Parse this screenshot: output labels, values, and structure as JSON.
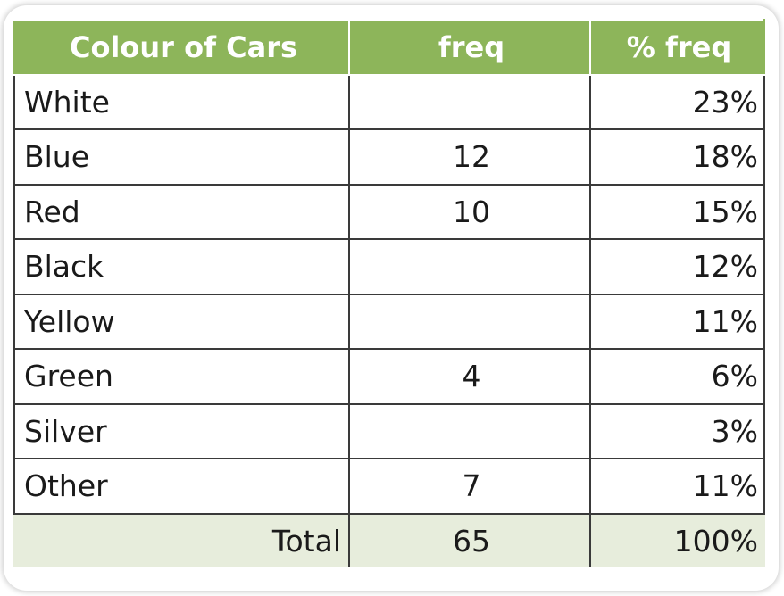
{
  "chart_data": {
    "type": "table",
    "columns": [
      "Colour of Cars",
      "freq",
      "% freq"
    ],
    "rows": [
      {
        "colour": "White",
        "freq": "",
        "pct": "23%"
      },
      {
        "colour": "Blue",
        "freq": "12",
        "pct": "18%"
      },
      {
        "colour": "Red",
        "freq": "10",
        "pct": "15%"
      },
      {
        "colour": "Black",
        "freq": "",
        "pct": "12%"
      },
      {
        "colour": "Yellow",
        "freq": "",
        "pct": "11%"
      },
      {
        "colour": "Green",
        "freq": "4",
        "pct": "6%"
      },
      {
        "colour": "Silver",
        "freq": "",
        "pct": "3%"
      },
      {
        "colour": "Other",
        "freq": "7",
        "pct": "11%"
      }
    ],
    "total": {
      "label": "Total",
      "freq": "65",
      "pct": "100%"
    }
  },
  "colors": {
    "header_bg": "#8db55a",
    "header_text": "#ffffff",
    "total_bg": "#e7eddc",
    "border": "#3a3a3a"
  }
}
